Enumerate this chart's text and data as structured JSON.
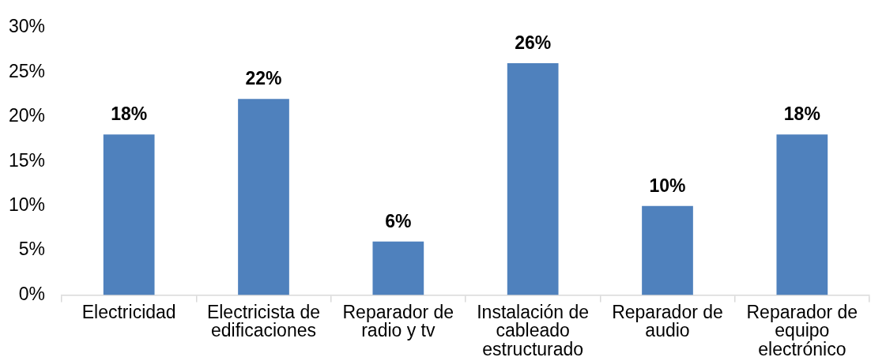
{
  "chart_data": {
    "type": "bar",
    "categories": [
      "Electricidad",
      "Electricista de edificaciones",
      "Reparador de radio y tv",
      "Instalación de cableado estructurado",
      "Reparador de audio",
      "Reparador de equipo electrónico"
    ],
    "values": [
      18,
      22,
      6,
      26,
      10,
      18
    ],
    "value_labels": [
      "18%",
      "22%",
      "6%",
      "26%",
      "10%",
      "18%"
    ],
    "color": "#4f81bd",
    "ylim": [
      0,
      30
    ],
    "yticks": [
      {
        "value": 0,
        "label": "0%"
      },
      {
        "value": 5,
        "label": "5%"
      },
      {
        "value": 10,
        "label": "10%"
      },
      {
        "value": 15,
        "label": "15%"
      },
      {
        "value": 20,
        "label": "20%"
      },
      {
        "value": 25,
        "label": "25%"
      },
      {
        "value": 30,
        "label": "30%"
      }
    ]
  }
}
